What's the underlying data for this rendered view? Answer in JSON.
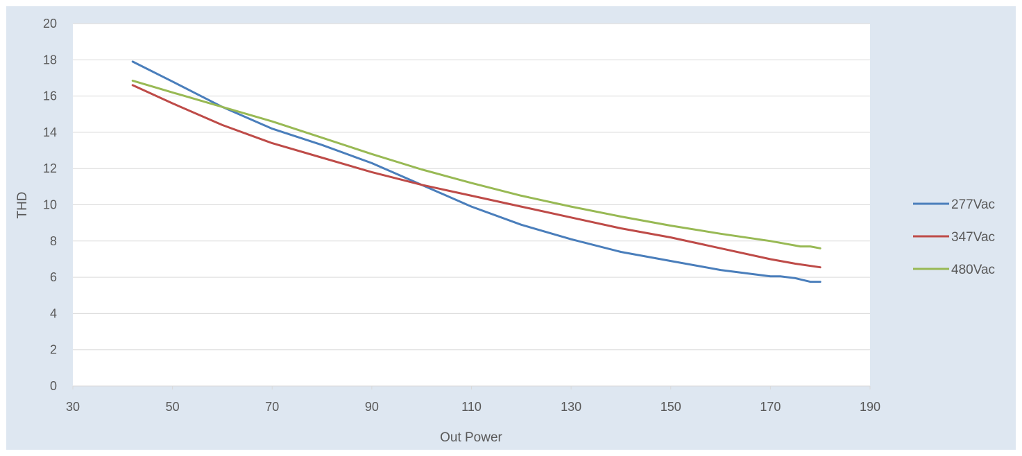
{
  "chart_data": {
    "type": "line",
    "title": "",
    "xlabel": "Out Power",
    "ylabel": "THD",
    "xlim": [
      30,
      190
    ],
    "ylim": [
      0,
      20
    ],
    "x_ticks": [
      30,
      50,
      70,
      90,
      110,
      130,
      150,
      170,
      190
    ],
    "y_ticks": [
      0,
      2,
      4,
      6,
      8,
      10,
      12,
      14,
      16,
      18,
      20
    ],
    "grid": "horizontal",
    "legend_position": "right",
    "series": [
      {
        "name": "277Vac",
        "color": "#4a7ebb",
        "x": [
          42,
          50,
          60,
          70,
          80,
          90,
          100,
          110,
          120,
          130,
          140,
          150,
          160,
          170,
          172,
          175,
          178,
          180
        ],
        "y": [
          17.9,
          16.8,
          15.4,
          14.2,
          13.3,
          12.3,
          11.1,
          9.9,
          8.9,
          8.1,
          7.4,
          6.9,
          6.4,
          6.05,
          6.05,
          5.95,
          5.75,
          5.75
        ]
      },
      {
        "name": "347Vac",
        "color": "#be4b48",
        "x": [
          42,
          50,
          60,
          70,
          80,
          90,
          100,
          110,
          120,
          130,
          140,
          150,
          160,
          170,
          175,
          180
        ],
        "y": [
          16.6,
          15.6,
          14.4,
          13.4,
          12.6,
          11.8,
          11.1,
          10.5,
          9.9,
          9.3,
          8.7,
          8.2,
          7.6,
          7.0,
          6.75,
          6.55
        ]
      },
      {
        "name": "480Vac",
        "color": "#98b954",
        "x": [
          42,
          50,
          60,
          70,
          80,
          90,
          100,
          110,
          120,
          130,
          140,
          150,
          160,
          170,
          173,
          176,
          178,
          180
        ],
        "y": [
          16.85,
          16.2,
          15.4,
          14.6,
          13.7,
          12.8,
          11.95,
          11.2,
          10.5,
          9.9,
          9.35,
          8.85,
          8.4,
          8.0,
          7.85,
          7.7,
          7.7,
          7.6
        ]
      }
    ]
  }
}
